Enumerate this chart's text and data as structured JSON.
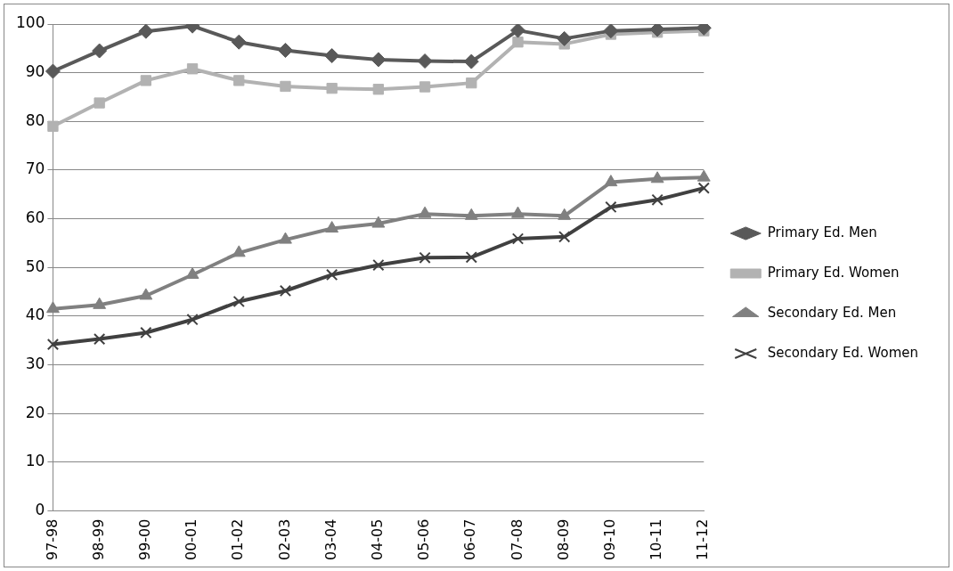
{
  "chart_data": {
    "type": "line",
    "categories": [
      "97-98",
      "98-99",
      "99-00",
      "00-01",
      "01-02",
      "02-03",
      "03-04",
      "04-05",
      "05-06",
      "06-07",
      "07-08",
      "08-09",
      "09-10",
      "10-11",
      "11-12"
    ],
    "ylim": [
      0,
      100
    ],
    "yticks": [
      0,
      10,
      20,
      30,
      40,
      50,
      60,
      70,
      80,
      90,
      100
    ],
    "grid": "y",
    "legend": "right",
    "series": [
      {
        "name": "Primary Ed. Men",
        "color": "#595959",
        "marker": "diamond",
        "values": [
          90.3,
          94.5,
          98.5,
          99.6,
          96.3,
          94.6,
          93.5,
          92.7,
          92.4,
          92.3,
          98.7,
          97.0,
          98.6,
          98.9,
          99.2
        ]
      },
      {
        "name": "Primary Ed. Women",
        "color": "#b2b2b2",
        "marker": "square",
        "values": [
          79.0,
          83.8,
          88.4,
          90.8,
          88.4,
          87.2,
          86.8,
          86.6,
          87.1,
          87.9,
          96.3,
          95.9,
          97.9,
          98.3,
          98.6
        ]
      },
      {
        "name": "Secondary Ed. Men",
        "color": "#808080",
        "marker": "triangle",
        "values": [
          41.5,
          42.3,
          44.2,
          48.5,
          53.0,
          55.7,
          58.0,
          59.0,
          61.0,
          60.6,
          61.0,
          60.6,
          67.5,
          68.2,
          68.5
        ]
      },
      {
        "name": "Secondary Ed. Women",
        "color": "#404040",
        "marker": "cross",
        "values": [
          34.2,
          35.3,
          36.6,
          39.3,
          43.0,
          45.2,
          48.5,
          50.5,
          52.0,
          52.1,
          55.9,
          56.3,
          62.4,
          63.9,
          66.3
        ]
      }
    ]
  }
}
